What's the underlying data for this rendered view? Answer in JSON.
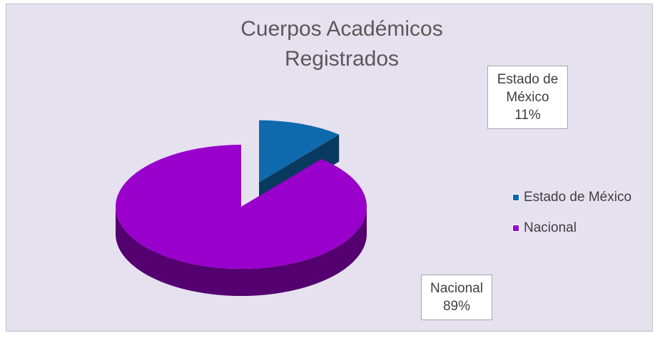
{
  "chart_data": {
    "type": "pie",
    "title": "Cuerpos Académicos Registrados",
    "categories": [
      "Estado de México",
      "Nacional"
    ],
    "values": [
      11,
      89
    ],
    "value_labels": [
      "11%",
      "89%"
    ],
    "colors": [
      "#0e6aad",
      "#9900cc"
    ],
    "explode": [
      true,
      false
    ],
    "legend": "right"
  }
}
